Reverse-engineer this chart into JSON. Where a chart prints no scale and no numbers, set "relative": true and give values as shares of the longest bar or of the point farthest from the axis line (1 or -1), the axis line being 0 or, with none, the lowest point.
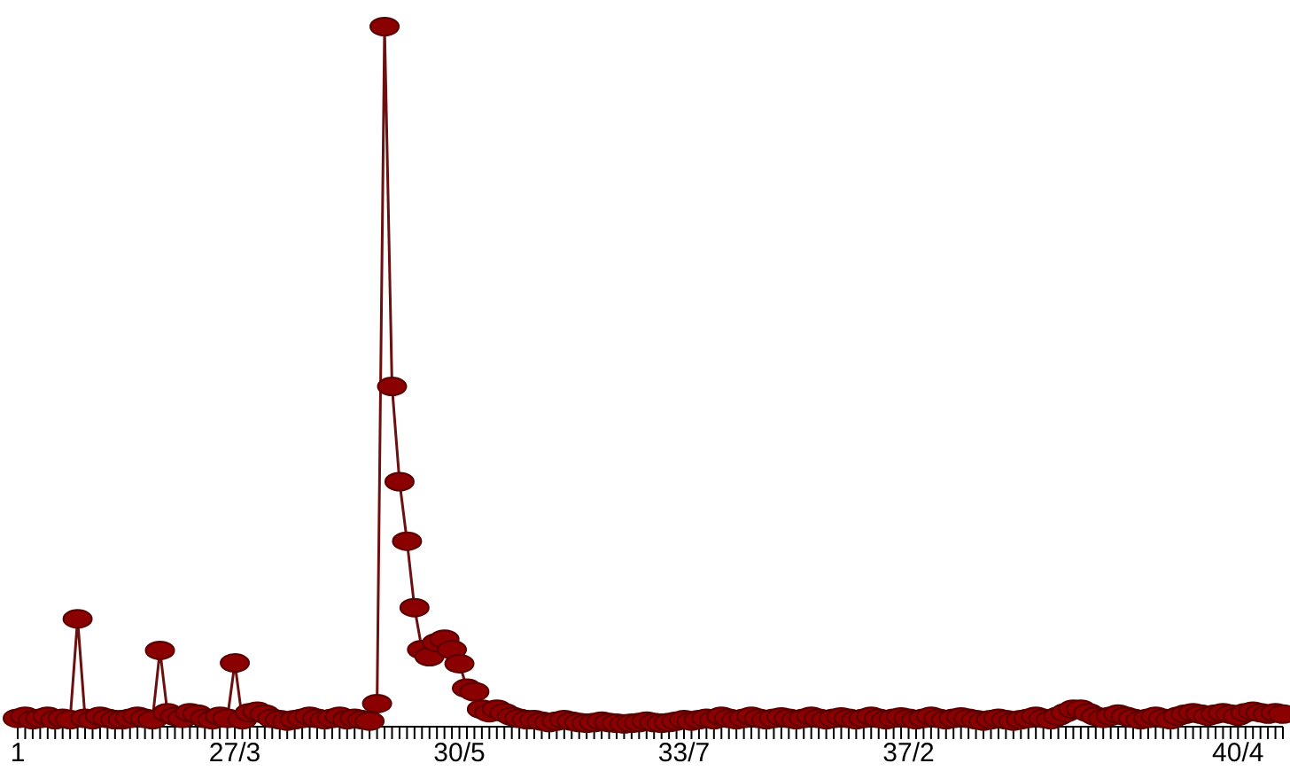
{
  "chart_data": {
    "type": "line",
    "relative": true,
    "marker": "circle",
    "grid": false,
    "legend": false,
    "categories": [
      "1",
      null,
      null,
      null,
      null,
      null,
      null,
      null,
      null,
      null,
      null,
      null,
      null,
      null,
      null,
      null,
      null,
      null,
      null,
      null,
      null,
      null,
      null,
      null,
      null,
      null,
      null,
      null,
      null,
      "27/3",
      null,
      null,
      null,
      null,
      null,
      null,
      null,
      null,
      null,
      null,
      null,
      null,
      null,
      null,
      null,
      null,
      null,
      null,
      null,
      null,
      null,
      null,
      null,
      null,
      null,
      null,
      null,
      null,
      null,
      "30/5",
      null,
      null,
      null,
      null,
      null,
      null,
      null,
      null,
      null,
      null,
      null,
      null,
      null,
      null,
      null,
      null,
      null,
      null,
      null,
      null,
      null,
      null,
      null,
      null,
      null,
      null,
      null,
      null,
      null,
      "33/7",
      null,
      null,
      null,
      null,
      null,
      null,
      null,
      null,
      null,
      null,
      null,
      null,
      null,
      null,
      null,
      null,
      null,
      null,
      null,
      null,
      null,
      null,
      null,
      null,
      null,
      null,
      null,
      null,
      null,
      "37/2",
      null,
      null,
      null,
      null,
      null,
      null,
      null,
      null,
      null,
      null,
      null,
      null,
      null,
      null,
      null,
      null,
      null,
      null,
      null,
      null,
      null,
      null,
      null,
      null,
      null,
      null,
      null,
      null,
      null,
      null,
      null,
      null,
      null,
      null,
      null,
      null,
      null,
      null,
      null,
      null,
      null,
      null,
      null,
      "40/4",
      null,
      null,
      null,
      null,
      null,
      null
    ],
    "series": [
      {
        "color": "#8b0000",
        "values": [
          0.012,
          0.015,
          0.01,
          0.012,
          0.015,
          0.01,
          0.012,
          0.01,
          0.154,
          0.012,
          0.01,
          0.015,
          0.012,
          0.01,
          0.01,
          0.012,
          0.015,
          0.012,
          0.01,
          0.109,
          0.02,
          0.015,
          0.012,
          0.02,
          0.018,
          0.012,
          0.01,
          0.015,
          0.012,
          0.091,
          0.01,
          0.02,
          0.022,
          0.018,
          0.012,
          0.01,
          0.008,
          0.01,
          0.012,
          0.015,
          0.012,
          0.01,
          0.012,
          0.015,
          0.01,
          0.012,
          0.01,
          0.008,
          0.033,
          1,
          0.486,
          0.35,
          0.265,
          0.17,
          0.11,
          0.1,
          0.12,
          0.125,
          0.11,
          0.09,
          0.055,
          0.05,
          0.025,
          0.02,
          0.025,
          0.02,
          0.015,
          0.012,
          0.01,
          0.01,
          0.008,
          0.006,
          0.008,
          0.01,
          0.008,
          0.006,
          0.005,
          0.006,
          0.008,
          0.006,
          0.005,
          0.004,
          0.005,
          0.006,
          0.008,
          0.006,
          0.005,
          0.006,
          0.008,
          0.01,
          0.008,
          0.01,
          0.012,
          0.01,
          0.015,
          0.012,
          0.01,
          0.012,
          0.015,
          0.012,
          0.01,
          0.012,
          0.014,
          0.012,
          0.01,
          0.012,
          0.015,
          0.012,
          0.01,
          0.012,
          0.014,
          0.012,
          0.01,
          0.012,
          0.015,
          0.012,
          0.01,
          0.012,
          0.014,
          0.012,
          0.01,
          0.012,
          0.015,
          0.012,
          0.01,
          0.012,
          0.014,
          0.012,
          0.01,
          0.008,
          0.01,
          0.012,
          0.01,
          0.008,
          0.01,
          0.012,
          0.015,
          0.012,
          0.01,
          0.015,
          0.02,
          0.025,
          0.025,
          0.02,
          0.015,
          0.012,
          0.015,
          0.018,
          0.015,
          0.012,
          0.01,
          0.012,
          0.015,
          0.012,
          0.01,
          0.015,
          0.018,
          0.02,
          0.018,
          0.015,
          0.018,
          0.02,
          0.018,
          0.015,
          0.02,
          0.022,
          0.02,
          0.018,
          0.02,
          0.018
        ]
      }
    ]
  }
}
